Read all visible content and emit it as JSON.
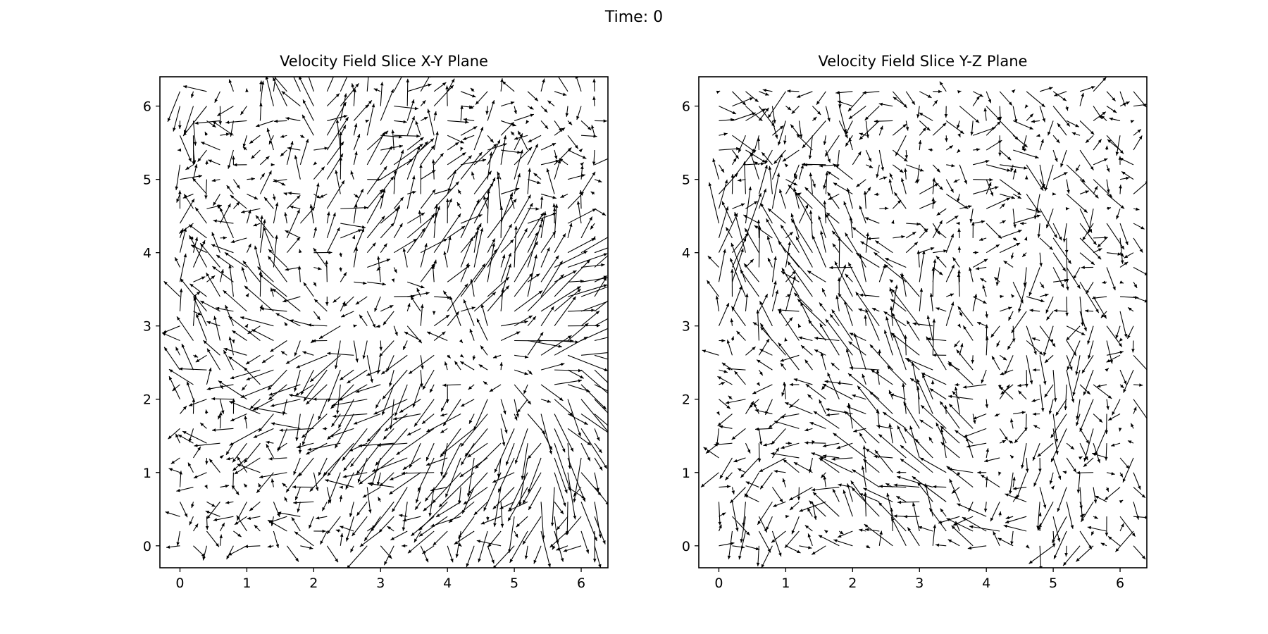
{
  "figure": {
    "suptitle": "Time: 0"
  },
  "colors": {
    "arrow": "#000000",
    "axis": "#000000",
    "background": "#ffffff"
  },
  "chart_data": [
    {
      "type": "quiver",
      "title": "Velocity Field Slice X-Y Plane",
      "xlabel": "",
      "ylabel": "",
      "xlim": [
        -0.3,
        6.4
      ],
      "ylim": [
        -0.3,
        6.4
      ],
      "xticks": [
        0,
        1,
        2,
        3,
        4,
        5,
        6
      ],
      "yticks": [
        0,
        1,
        2,
        3,
        4,
        5,
        6
      ],
      "grid": false,
      "field": {
        "grid_start": 0,
        "grid_step": 0.2,
        "grid_count": 32,
        "seed": 7,
        "description_free": true
      }
    },
    {
      "type": "quiver",
      "title": "Velocity Field Slice Y-Z Plane",
      "xlabel": "",
      "ylabel": "",
      "xlim": [
        -0.3,
        6.4
      ],
      "ylim": [
        -0.3,
        6.4
      ],
      "xticks": [
        0,
        1,
        2,
        3,
        4,
        5,
        6
      ],
      "yticks": [
        0,
        1,
        2,
        3,
        4,
        5,
        6
      ],
      "grid": false,
      "field": {
        "grid_start": 0,
        "grid_step": 0.2,
        "grid_count": 32,
        "seed": 19,
        "description_free": true
      }
    }
  ]
}
